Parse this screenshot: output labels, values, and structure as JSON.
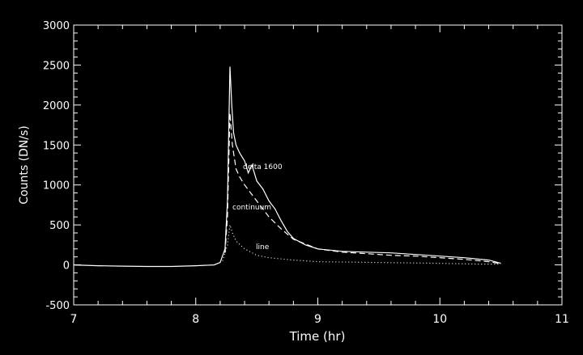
{
  "chart_data": {
    "type": "line",
    "xlabel": "Time (hr)",
    "ylabel": "Counts (DN/s)",
    "xlim": [
      7,
      11
    ],
    "ylim": [
      -500,
      3000
    ],
    "x_ticks": [
      "7",
      "8",
      "9",
      "10",
      "11"
    ],
    "y_ticks": [
      "-500",
      "0",
      "500",
      "1000",
      "1500",
      "2000",
      "2500",
      "3000"
    ],
    "grid": false,
    "background_color": "#000000",
    "foreground_color": "#ffffff",
    "series": [
      {
        "name": "delta 1600",
        "style": "solid",
        "points": [
          [
            7.0,
            0
          ],
          [
            7.2,
            -10
          ],
          [
            7.4,
            -15
          ],
          [
            7.6,
            -20
          ],
          [
            7.8,
            -20
          ],
          [
            8.0,
            -10
          ],
          [
            8.15,
            0
          ],
          [
            8.2,
            30
          ],
          [
            8.24,
            200
          ],
          [
            8.26,
            800
          ],
          [
            8.28,
            2480
          ],
          [
            8.295,
            2000
          ],
          [
            8.31,
            1650
          ],
          [
            8.33,
            1500
          ],
          [
            8.36,
            1400
          ],
          [
            8.4,
            1300
          ],
          [
            8.43,
            1150
          ],
          [
            8.46,
            1250
          ],
          [
            8.5,
            1050
          ],
          [
            8.55,
            950
          ],
          [
            8.6,
            800
          ],
          [
            8.65,
            700
          ],
          [
            8.7,
            550
          ],
          [
            8.75,
            420
          ],
          [
            8.8,
            330
          ],
          [
            8.9,
            250
          ],
          [
            9.0,
            200
          ],
          [
            9.2,
            170
          ],
          [
            9.4,
            160
          ],
          [
            9.6,
            150
          ],
          [
            9.8,
            130
          ],
          [
            10.0,
            110
          ],
          [
            10.2,
            90
          ],
          [
            10.4,
            60
          ],
          [
            10.5,
            20
          ]
        ]
      },
      {
        "name": "continuum",
        "style": "dashed",
        "points": [
          [
            8.24,
            150
          ],
          [
            8.26,
            600
          ],
          [
            8.28,
            1900
          ],
          [
            8.3,
            1500
          ],
          [
            8.33,
            1200
          ],
          [
            8.36,
            1100
          ],
          [
            8.4,
            1000
          ],
          [
            8.45,
            900
          ],
          [
            8.5,
            800
          ],
          [
            8.55,
            700
          ],
          [
            8.6,
            600
          ],
          [
            8.7,
            450
          ],
          [
            8.8,
            320
          ],
          [
            9.0,
            200
          ],
          [
            9.2,
            160
          ],
          [
            9.4,
            140
          ],
          [
            9.6,
            120
          ],
          [
            9.8,
            110
          ],
          [
            10.0,
            90
          ],
          [
            10.2,
            70
          ],
          [
            10.4,
            40
          ],
          [
            10.5,
            15
          ]
        ]
      },
      {
        "name": "line",
        "style": "dotted",
        "points": [
          [
            8.22,
            50
          ],
          [
            8.26,
            250
          ],
          [
            8.28,
            500
          ],
          [
            8.3,
            400
          ],
          [
            8.33,
            300
          ],
          [
            8.4,
            200
          ],
          [
            8.5,
            120
          ],
          [
            8.6,
            90
          ],
          [
            8.8,
            60
          ],
          [
            9.0,
            40
          ],
          [
            9.5,
            30
          ],
          [
            10.0,
            20
          ],
          [
            10.3,
            10
          ],
          [
            10.5,
            10
          ]
        ]
      }
    ],
    "annotations": [
      "delta 1600",
      "continuum",
      "line"
    ]
  }
}
